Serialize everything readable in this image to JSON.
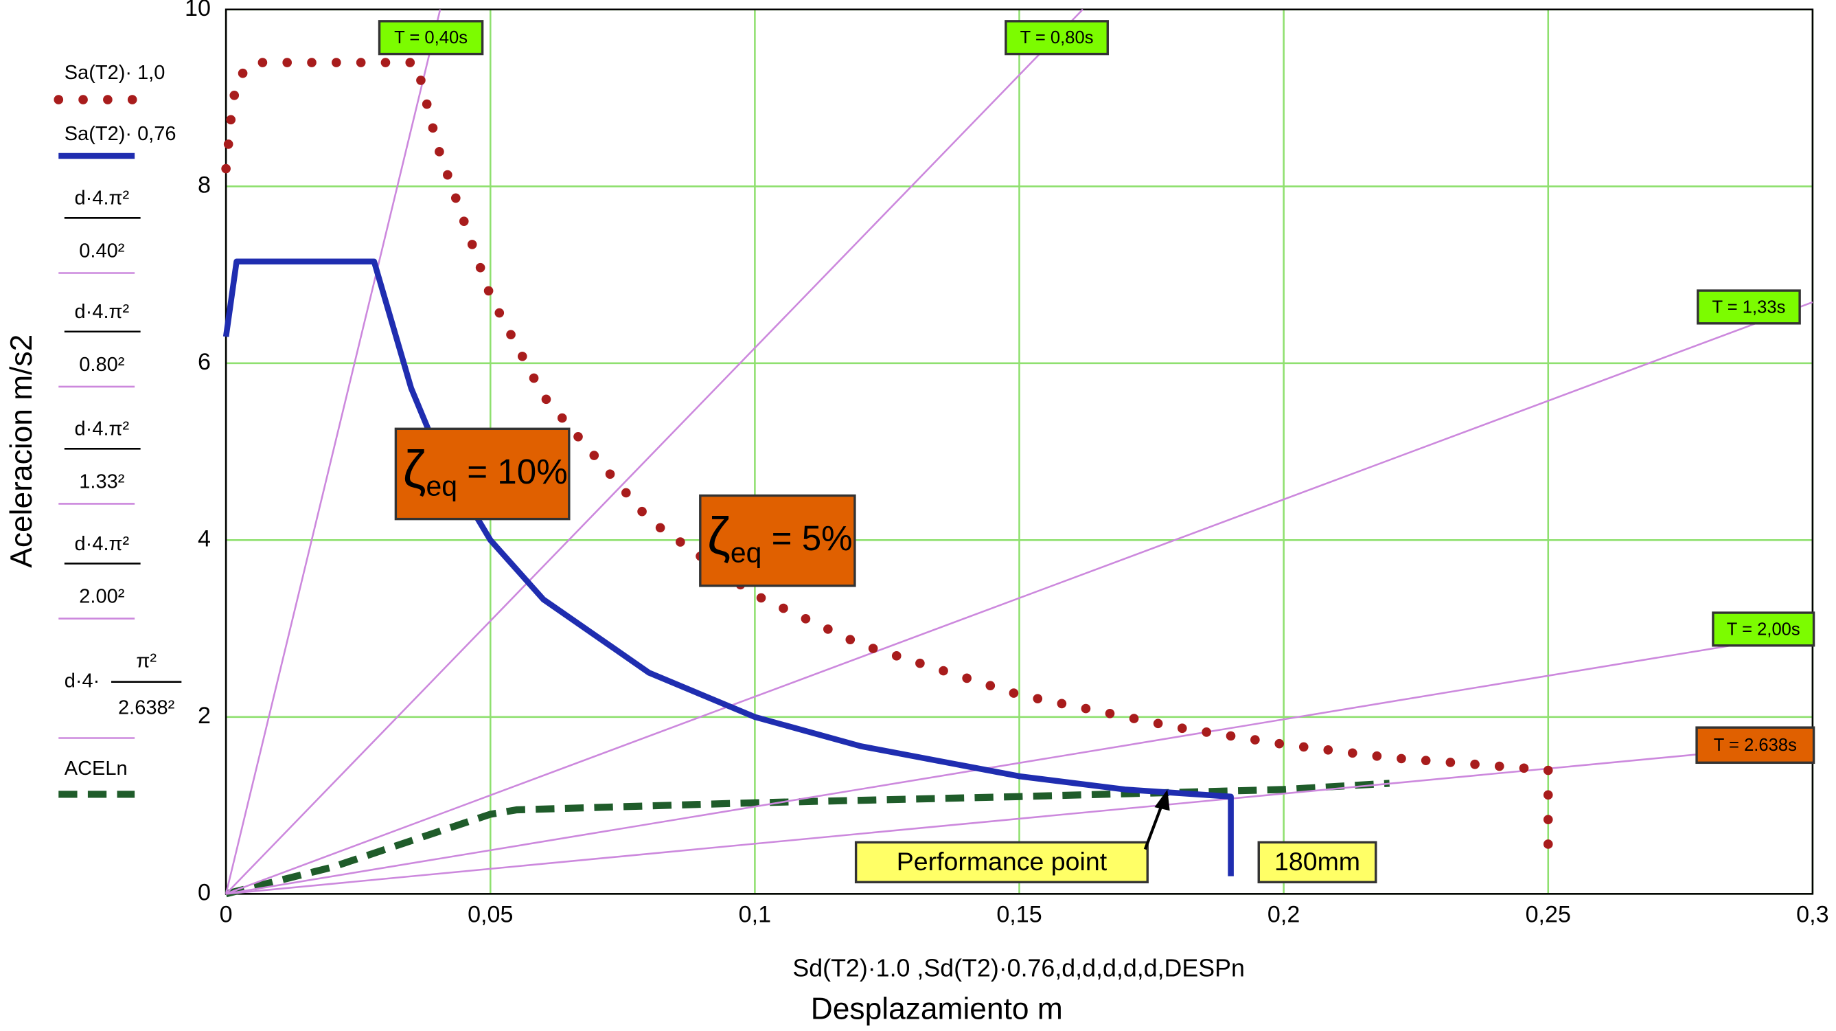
{
  "chart_data": {
    "type": "line",
    "xlabel": [
      "Sd(T2)·1.0 ,Sd(T2)·0.76,d,d,d,d,d,DESPn",
      "Desplazamiento m"
    ],
    "ylabel": "Aceleracion m/s2",
    "xlim": [
      0,
      0.3
    ],
    "ylim": [
      0,
      10
    ],
    "xticks": [
      0,
      {
        "value": 0.05,
        "label": "0,05"
      },
      {
        "value": 0.1,
        "label": "0,1"
      },
      {
        "value": 0.15,
        "label": "0,15"
      },
      {
        "value": 0.2,
        "label": "0,2"
      },
      {
        "value": 0.25,
        "label": "0,25"
      },
      {
        "value": 0.3,
        "label": "0,3"
      }
    ],
    "yticks": [
      0,
      2,
      4,
      6,
      8,
      10
    ],
    "grid": true,
    "grid_color": "#8fe06f",
    "series": [
      {
        "name": "Sa(T2)· 1,0",
        "color": "#a81c1c",
        "style": "dotted",
        "x": [
          0,
          0.001,
          0.002,
          0.005,
          0.01,
          0.02,
          0.03,
          0.036,
          0.04,
          0.05,
          0.06,
          0.08,
          0.1,
          0.12,
          0.15,
          0.18,
          0.2,
          0.22,
          0.25,
          0.25
        ],
        "values": [
          8.2,
          8.8,
          9.2,
          9.4,
          9.4,
          9.4,
          9.4,
          9.4,
          8.45,
          6.76,
          5.63,
          4.23,
          3.38,
          2.82,
          2.25,
          1.88,
          1.69,
          1.54,
          1.4,
          0.3
        ]
      },
      {
        "name": "Sa(T2)· 0,76",
        "color": "#1f2db0",
        "style": "solid",
        "x": [
          0,
          0.002,
          0.01,
          0.02,
          0.028,
          0.035,
          0.04,
          0.05,
          0.06,
          0.08,
          0.1,
          0.12,
          0.15,
          0.17,
          0.19,
          0.19
        ],
        "values": [
          6.3,
          7.15,
          7.15,
          7.15,
          7.15,
          5.72,
          5.0,
          4.0,
          3.33,
          2.5,
          2.0,
          1.67,
          1.33,
          1.18,
          1.1,
          0.2
        ]
      },
      {
        "name": {
          "numerator": "d·4.π²",
          "denominator": "0.40²"
        },
        "color": "#cc88dd",
        "style": "thin",
        "x": [
          0,
          0.0405
        ],
        "values": [
          0,
          10
        ]
      },
      {
        "name": {
          "numerator": "d·4.π²",
          "denominator": "0.80²"
        },
        "color": "#cc88dd",
        "style": "thin",
        "x": [
          0,
          0.162
        ],
        "values": [
          0,
          10
        ]
      },
      {
        "name": {
          "numerator": "d·4.π²",
          "denominator": "1.33²"
        },
        "color": "#cc88dd",
        "style": "thin",
        "x": [
          0,
          0.3
        ],
        "values": [
          0,
          6.69
        ]
      },
      {
        "name": {
          "numerator": "d·4.π²",
          "denominator": "2.00²"
        },
        "color": "#cc88dd",
        "style": "thin",
        "x": [
          0,
          0.3
        ],
        "values": [
          0,
          2.96
        ]
      },
      {
        "name": {
          "prefix": "d·4·",
          "numerator": "π²",
          "denominator": "2.638²"
        },
        "color": "#cc88dd",
        "style": "thin",
        "x": [
          0,
          0.3
        ],
        "values": [
          0,
          1.7
        ]
      },
      {
        "name": "ACELn",
        "color": "#1f5c2a",
        "style": "dashed",
        "x": [
          0,
          0.02,
          0.04,
          0.05,
          0.055,
          0.1,
          0.15,
          0.2,
          0.22
        ],
        "values": [
          0,
          0.3,
          0.7,
          0.9,
          0.95,
          1.03,
          1.1,
          1.18,
          1.25
        ]
      }
    ],
    "annotations": [
      {
        "text": "T = 0,40s",
        "color": "#7cfc00"
      },
      {
        "text": "T = 0,80s",
        "color": "#7cfc00"
      },
      {
        "text": "T = 1,33s",
        "color": "#7cfc00"
      },
      {
        "text": "T = 2,00s",
        "color": "#7cfc00"
      },
      {
        "text": "T = 2.638s",
        "color": "#e06000"
      },
      {
        "text": [
          "ζ",
          "eq",
          " = 10%"
        ],
        "color": "#e06000"
      },
      {
        "text": [
          "ζ",
          "eq",
          " = 5%"
        ],
        "color": "#e06000"
      },
      {
        "text": "Performance point",
        "color": "#ffff66"
      },
      {
        "text": "180mm",
        "color": "#ffff66"
      }
    ]
  }
}
